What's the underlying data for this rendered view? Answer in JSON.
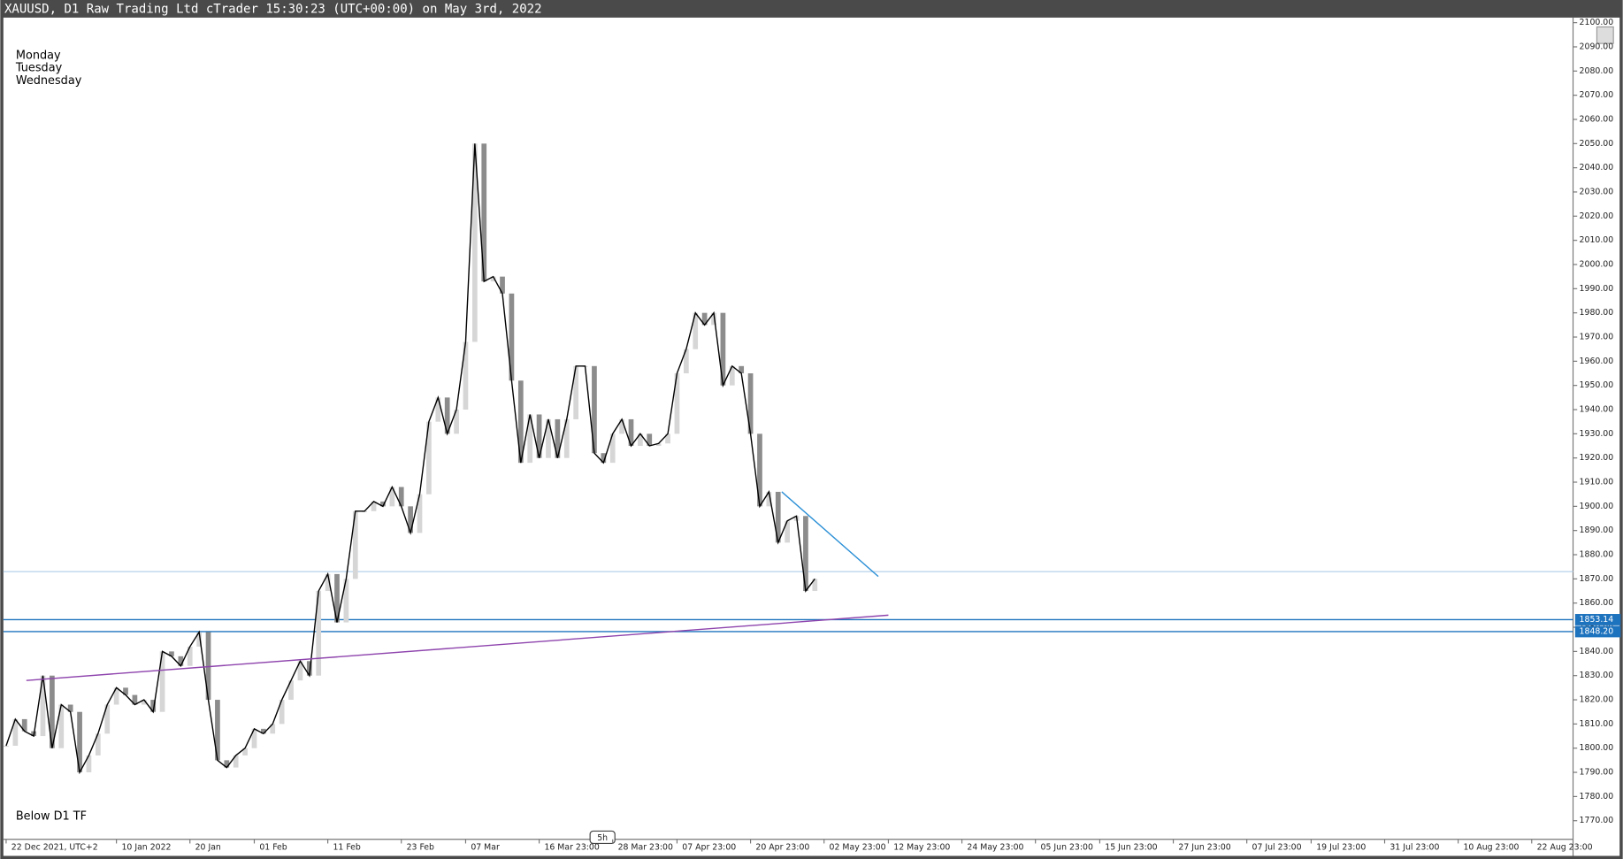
{
  "chart_data": {
    "type": "line",
    "title": "XAUUSD, D1 Raw Trading Ltd cTrader 15:30:23 (UTC+00:00) on May 3rd, 2022",
    "annotations": [
      "Monday",
      "Tuesday",
      "Wednesday",
      "Below D1 TF",
      "5h"
    ],
    "x": [
      0,
      1,
      2,
      3,
      4,
      5,
      6,
      7,
      8,
      9,
      10,
      11,
      12,
      13,
      14,
      15,
      16,
      17,
      18,
      19,
      20,
      21,
      22,
      23,
      24,
      25,
      26,
      27,
      28,
      29,
      30,
      31,
      32,
      33,
      34,
      35,
      36,
      37,
      38,
      39,
      40,
      41,
      42,
      43,
      44,
      45,
      46,
      47,
      48,
      49,
      50,
      51,
      52,
      53,
      54,
      55,
      56,
      57,
      58,
      59,
      60,
      61,
      62,
      63,
      64,
      65,
      66,
      67,
      68,
      69,
      70,
      71,
      72,
      73,
      74,
      75,
      76,
      77,
      78,
      79,
      80,
      81,
      82,
      83,
      84,
      85,
      86,
      87,
      88
    ],
    "series": [
      {
        "color": "#000000",
        "values": [
          1801,
          1812,
          1807,
          1805,
          1830,
          1800,
          1818,
          1815,
          1790,
          1797,
          1806,
          1818,
          1825,
          1822,
          1818,
          1820,
          1815,
          1840,
          1838,
          1834,
          1842,
          1848,
          1820,
          1795,
          1792,
          1797,
          1800,
          1808,
          1806,
          1810,
          1820,
          1828,
          1836,
          1830,
          1865,
          1872,
          1852,
          1870,
          1898,
          1898,
          1902,
          1900,
          1908,
          1900,
          1889,
          1905,
          1935,
          1945,
          1930,
          1940,
          1968,
          2050,
          1993,
          1995,
          1988,
          1952,
          1918,
          1938,
          1920,
          1936,
          1920,
          1936,
          1958,
          1958,
          1922,
          1918,
          1930,
          1936,
          1925,
          1930,
          1925,
          1926,
          1930,
          1955,
          1965,
          1980,
          1975,
          1980,
          1950,
          1958,
          1955,
          1930,
          1900,
          1906,
          1885,
          1894,
          1896,
          1865,
          1870
        ]
      }
    ],
    "xlim": [
      -0.3,
      170.5
    ],
    "xticks": [
      {
        "value": 0,
        "label": "22 Dec 2021, UTC+2"
      },
      {
        "value": 12,
        "label": "10 Jan 2022"
      },
      {
        "value": 20,
        "label": "20 Jan"
      },
      {
        "value": 27,
        "label": "01 Feb"
      },
      {
        "value": 35,
        "label": "11 Feb"
      },
      {
        "value": 43,
        "label": "23 Feb"
      },
      {
        "value": 50,
        "label": "07 Mar"
      },
      {
        "value": 58,
        "label": "16 Mar 23:00"
      },
      {
        "value": 66,
        "label": "28 Mar 23:00"
      },
      {
        "value": 73,
        "label": "07 Apr 23:00"
      },
      {
        "value": 81,
        "label": "20 Apr 23:00"
      },
      {
        "value": 89,
        "label": "02 May 23:00"
      },
      {
        "value": 96,
        "label": "12 May 23:00"
      },
      {
        "value": 104,
        "label": "24 May 23:00"
      },
      {
        "value": 112,
        "label": "05 Jun 23:00"
      },
      {
        "value": 119,
        "label": "15 Jun 23:00"
      },
      {
        "value": 127,
        "label": "27 Jun 23:00"
      },
      {
        "value": 135,
        "label": "07 Jul 23:00"
      },
      {
        "value": 142,
        "label": "19 Jul 23:00"
      },
      {
        "value": 150,
        "label": "31 Jul 23:00"
      },
      {
        "value": 158,
        "label": "10 Aug 23:00"
      },
      {
        "value": 166,
        "label": "22 Aug 23:00"
      }
    ],
    "ylim": [
      1762.3,
      2102.1
    ],
    "yticks": [
      {
        "value": 1770,
        "label": "1770.00"
      },
      {
        "value": 1780,
        "label": "1780.00"
      },
      {
        "value": 1790,
        "label": "1790.00"
      },
      {
        "value": 1800,
        "label": "1800.00"
      },
      {
        "value": 1810,
        "label": "1810.00"
      },
      {
        "value": 1820,
        "label": "1820.00"
      },
      {
        "value": 1830,
        "label": "1830.00"
      },
      {
        "value": 1840,
        "label": "1840.00"
      },
      {
        "value": 1850,
        "label": "1850.00"
      },
      {
        "value": 1860,
        "label": "1860.00"
      },
      {
        "value": 1870,
        "label": "1870.00"
      },
      {
        "value": 1880,
        "label": "1880.00"
      },
      {
        "value": 1890,
        "label": "1890.00"
      },
      {
        "value": 1900,
        "label": "1900.00"
      },
      {
        "value": 1910,
        "label": "1910.00"
      },
      {
        "value": 1920,
        "label": "1920.00"
      },
      {
        "value": 1930,
        "label": "1930.00"
      },
      {
        "value": 1940,
        "label": "1940.00"
      },
      {
        "value": 1950,
        "label": "1950.00"
      },
      {
        "value": 1960,
        "label": "1960.00"
      },
      {
        "value": 1970,
        "label": "1970.00"
      },
      {
        "value": 1980,
        "label": "1980.00"
      },
      {
        "value": 1990,
        "label": "1990.00"
      },
      {
        "value": 2000,
        "label": "2000.00"
      },
      {
        "value": 2010,
        "label": "2010.00"
      },
      {
        "value": 2020,
        "label": "2020.00"
      },
      {
        "value": 2030,
        "label": "2030.00"
      },
      {
        "value": 2040,
        "label": "2040.00"
      },
      {
        "value": 2050,
        "label": "2050.00"
      },
      {
        "value": 2060,
        "label": "2060.00"
      },
      {
        "value": 2070,
        "label": "2070.00"
      },
      {
        "value": 2080,
        "label": "2080.00"
      },
      {
        "value": 2090,
        "label": "2090.00"
      },
      {
        "value": 2100,
        "label": "2100.00"
      }
    ],
    "hlines": [
      {
        "value": 1853.14,
        "label": "1853.14",
        "color": "#1e73be"
      },
      {
        "value": 1848.2,
        "label": "1848.20",
        "color": "#1e73be"
      },
      {
        "value": 1873,
        "color": "#bcd6ee"
      }
    ],
    "trendlines": [
      {
        "x": [
          2.2,
          96.0
        ],
        "y": [
          1828,
          1855
        ],
        "color": "#8e44ad"
      },
      {
        "x": [
          84.4,
          94.9
        ],
        "y": [
          1906,
          1871
        ],
        "color": "#2a8fd6"
      }
    ]
  }
}
